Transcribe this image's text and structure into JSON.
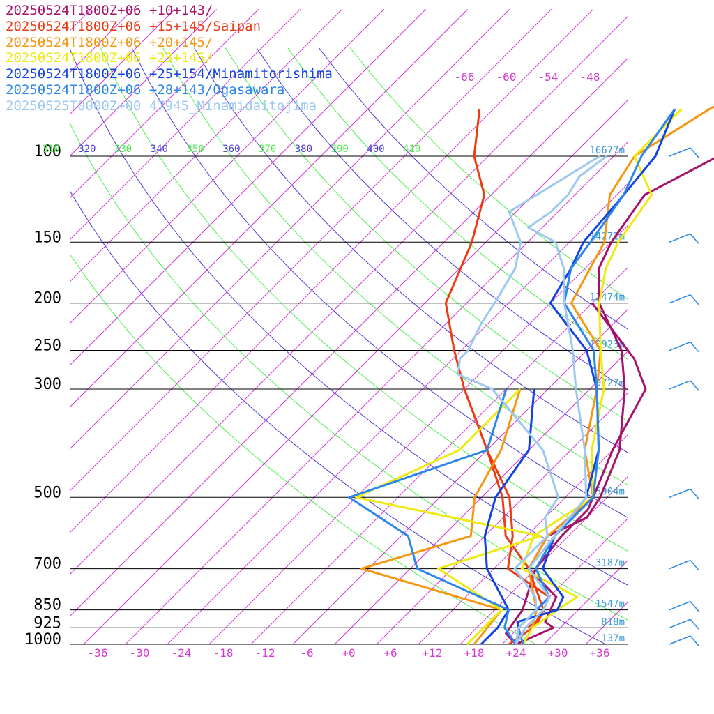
{
  "chart_data": {
    "type": "line",
    "title": "",
    "xlabel": "",
    "ylabel": "",
    "x_axis": {
      "ticks": [
        "-36",
        "-30",
        "-24",
        "-18",
        "-12",
        "-6",
        "+0",
        "+6",
        "+12",
        "+18",
        "+24",
        "+30",
        "+36"
      ],
      "xlim": [
        -40,
        40
      ]
    },
    "pressure_levels": [
      {
        "label": "100",
        "p": 100,
        "height": "16677m"
      },
      {
        "label": "150",
        "p": 150,
        "height": "14271m"
      },
      {
        "label": "200",
        "p": 200,
        "height": "12474m"
      },
      {
        "label": "250",
        "p": 250,
        "height": "10923m"
      },
      {
        "label": "300",
        "p": 300,
        "height": "9727m"
      },
      {
        "label": "500",
        "p": 500,
        "height": "5904m"
      },
      {
        "label": "700",
        "p": 700,
        "height": "3187m"
      },
      {
        "label": "850",
        "p": 850,
        "height": "1547m"
      },
      {
        "label": "925",
        "p": 925,
        "height": "818m"
      },
      {
        "label": "1000",
        "p": 1000,
        "height": "137m"
      }
    ],
    "theta_labels": [
      {
        "text": "310",
        "color": "#4cef4c"
      },
      {
        "text": "320",
        "color": "#4c3ad9"
      },
      {
        "text": "330",
        "color": "#4cef4c"
      },
      {
        "text": "340",
        "color": "#4c3ad9"
      },
      {
        "text": "350",
        "color": "#4cef4c"
      },
      {
        "text": "360",
        "color": "#4c3ad9"
      },
      {
        "text": "370",
        "color": "#4cef4c"
      },
      {
        "text": "380",
        "color": "#4c3ad9"
      },
      {
        "text": "390",
        "color": "#4cef4c"
      },
      {
        "text": "400",
        "color": "#4c3ad9"
      },
      {
        "text": "410",
        "color": "#4cef4c"
      }
    ],
    "mixing_labels": [
      "-66",
      "-60",
      "-54",
      "-48"
    ],
    "series": [
      {
        "name": "20250524T1800Z+06 +10+143/",
        "color": "#a6116b"
      },
      {
        "name": "20250524T1800Z+06 +15+145/Saipan",
        "color": "#ee3b14"
      },
      {
        "name": "20250524T1800Z+06 +20+145/",
        "color": "#f6960f"
      },
      {
        "name": "20250524T1800Z+06 +23+145/",
        "color": "#efea10"
      },
      {
        "name": "20250524T1800Z+06 +25+154/Minamitorishima",
        "color": "#1342e3"
      },
      {
        "name": "20250524T1800Z+06 +28+143/Ogasawara",
        "color": "#2b87e8"
      },
      {
        "name": "20250525T0000Z+00 47945_Minamidaitojima",
        "color": "#9dc8f2"
      }
    ],
    "profiles": [
      {
        "color": "#a6116b",
        "temp": [
          [
            1000,
            24
          ],
          [
            925,
            27
          ],
          [
            900,
            25
          ],
          [
            850,
            24
          ],
          [
            800,
            23
          ],
          [
            700,
            15
          ],
          [
            600,
            13
          ],
          [
            550,
            16
          ],
          [
            500,
            15
          ],
          [
            400,
            11
          ],
          [
            300,
            3
          ],
          [
            250,
            -3
          ],
          [
            200,
            -13
          ],
          [
            170,
            -18
          ],
          [
            150,
            -20
          ],
          [
            120,
            -22
          ],
          [
            100,
            -17
          ],
          [
            90,
            -9
          ],
          [
            80,
            -4
          ],
          [
            60,
            8
          ]
        ],
        "dew": [
          [
            1000,
            24
          ],
          [
            950,
            21
          ],
          [
            850,
            20
          ],
          [
            700,
            16
          ],
          [
            600,
            15
          ],
          [
            530,
            15
          ],
          [
            500,
            14
          ],
          [
            400,
            10
          ],
          [
            300,
            6
          ],
          [
            260,
            0
          ],
          [
            200,
            -14
          ]
        ]
      },
      {
        "color": "#ee3b14",
        "temp": [
          [
            1000,
            24
          ],
          [
            925,
            23
          ],
          [
            900,
            24
          ],
          [
            850,
            23
          ],
          [
            800,
            22
          ],
          [
            700,
            12
          ],
          [
            600,
            8
          ],
          [
            500,
            2
          ],
          [
            400,
            -8
          ],
          [
            300,
            -20
          ],
          [
            250,
            -27
          ],
          [
            200,
            -35
          ],
          [
            150,
            -40
          ],
          [
            120,
            -45
          ],
          [
            100,
            -52
          ],
          [
            80,
            -58
          ]
        ],
        "dew": [
          [
            1000,
            23
          ],
          [
            925,
            24
          ],
          [
            850,
            23
          ],
          [
            700,
            15
          ],
          [
            600,
            7
          ],
          [
            500,
            1
          ],
          [
            400,
            -8
          ],
          [
            300,
            -20
          ]
        ]
      },
      {
        "color": "#f6960f",
        "temp": [
          [
            1000,
            25
          ],
          [
            925,
            24
          ],
          [
            850,
            22
          ],
          [
            700,
            15
          ],
          [
            600,
            13
          ],
          [
            500,
            14
          ],
          [
            400,
            6
          ],
          [
            300,
            -1
          ],
          [
            250,
            -6
          ],
          [
            200,
            -17
          ],
          [
            150,
            -21
          ],
          [
            120,
            -27
          ],
          [
            100,
            -29
          ],
          [
            80,
            -25
          ],
          [
            60,
            -16
          ]
        ],
        "dew": [
          [
            1000,
            18
          ],
          [
            850,
            17
          ],
          [
            700,
            -9
          ],
          [
            600,
            2
          ],
          [
            500,
            -3
          ],
          [
            400,
            -6
          ],
          [
            300,
            -12
          ]
        ]
      },
      {
        "color": "#efea10",
        "temp": [
          [
            1000,
            25
          ],
          [
            925,
            24
          ],
          [
            850,
            25
          ],
          [
            800,
            26
          ],
          [
            700,
            14
          ],
          [
            600,
            11
          ],
          [
            500,
            14
          ],
          [
            400,
            7
          ],
          [
            300,
            0
          ],
          [
            250,
            -6
          ],
          [
            200,
            -13
          ],
          [
            170,
            -17
          ],
          [
            150,
            -19
          ],
          [
            120,
            -21
          ],
          [
            100,
            -29
          ],
          [
            80,
            -29
          ]
        ],
        "dew": [
          [
            1000,
            17
          ],
          [
            850,
            17
          ],
          [
            700,
            2
          ],
          [
            600,
            12
          ],
          [
            500,
            -20
          ],
          [
            400,
            -12
          ],
          [
            300,
            -12
          ]
        ]
      },
      {
        "color": "#1342e3",
        "temp": [
          [
            1000,
            24
          ],
          [
            925,
            22
          ],
          [
            900,
            21
          ],
          [
            850,
            25
          ],
          [
            800,
            24
          ],
          [
            700,
            17
          ],
          [
            600,
            14
          ],
          [
            500,
            13
          ],
          [
            400,
            8
          ],
          [
            300,
            -1
          ],
          [
            250,
            -8
          ],
          [
            200,
            -20
          ],
          [
            170,
            -22
          ],
          [
            150,
            -24
          ],
          [
            120,
            -25
          ],
          [
            100,
            -26
          ],
          [
            80,
            -30
          ]
        ],
        "dew": [
          [
            1000,
            19
          ],
          [
            925,
            19
          ],
          [
            850,
            18
          ],
          [
            700,
            9
          ],
          [
            600,
            4
          ],
          [
            500,
            0
          ],
          [
            400,
            -2
          ],
          [
            300,
            -10
          ]
        ]
      },
      {
        "color": "#2b87e8",
        "temp": [
          [
            1000,
            25
          ],
          [
            925,
            22
          ],
          [
            850,
            22
          ],
          [
            800,
            22
          ],
          [
            700,
            16
          ],
          [
            600,
            14
          ],
          [
            500,
            14
          ],
          [
            400,
            8
          ],
          [
            300,
            -1
          ],
          [
            250,
            -7
          ],
          [
            200,
            -18
          ],
          [
            170,
            -22
          ],
          [
            150,
            -23
          ],
          [
            120,
            -25
          ],
          [
            100,
            -28
          ],
          [
            80,
            -30
          ]
        ],
        "dew": [
          [
            1000,
            24
          ],
          [
            925,
            20
          ],
          [
            850,
            18
          ],
          [
            700,
            -1
          ],
          [
            600,
            -7
          ],
          [
            500,
            -21
          ],
          [
            400,
            -8
          ],
          [
            300,
            -14
          ]
        ]
      },
      {
        "color": "#9dc8f2",
        "temp": [
          [
            1000,
            24
          ],
          [
            925,
            23
          ],
          [
            850,
            23
          ],
          [
            800,
            22
          ],
          [
            700,
            15
          ],
          [
            600,
            14
          ],
          [
            500,
            13
          ],
          [
            400,
            6
          ],
          [
            300,
            -4
          ],
          [
            250,
            -10
          ],
          [
            200,
            -18
          ],
          [
            170,
            -23
          ],
          [
            150,
            -28
          ],
          [
            140,
            -34
          ],
          [
            130,
            -33
          ],
          [
            120,
            -33
          ],
          [
            110,
            -34
          ],
          [
            100,
            -33
          ]
        ],
        "dew": [
          [
            1000,
            24
          ],
          [
            925,
            22
          ],
          [
            850,
            22
          ],
          [
            800,
            20
          ],
          [
            700,
            13
          ],
          [
            600,
            13
          ],
          [
            550,
            10
          ],
          [
            500,
            9
          ],
          [
            400,
            0
          ],
          [
            300,
            -16
          ],
          [
            280,
            -23
          ],
          [
            260,
            -25
          ],
          [
            250,
            -25
          ],
          [
            220,
            -27
          ],
          [
            200,
            -28
          ],
          [
            170,
            -30
          ],
          [
            150,
            -33
          ],
          [
            130,
            -39
          ],
          [
            100,
            -34
          ]
        ]
      }
    ],
    "wind_barbs": [
      100,
      150,
      200,
      250,
      300,
      500,
      700,
      850,
      925,
      1000
    ]
  }
}
